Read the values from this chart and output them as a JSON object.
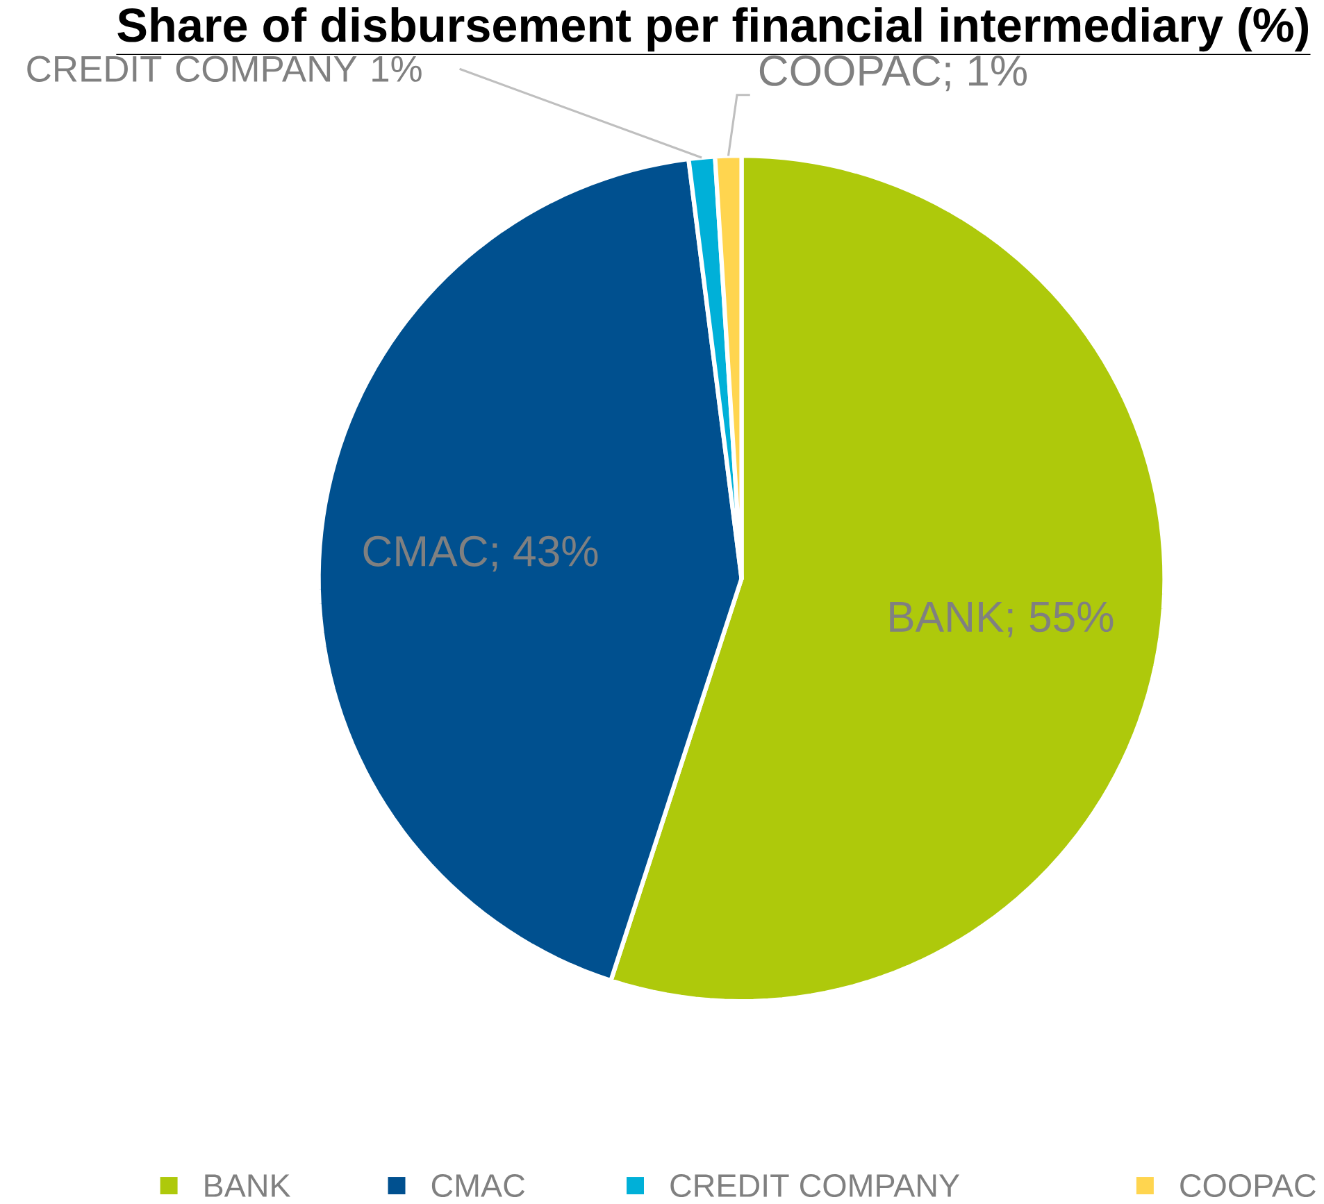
{
  "chart_data": {
    "type": "pie",
    "title": "Share of disbursement per financial intermediary (%)",
    "categories": [
      "BANK",
      "CMAC",
      "CREDIT COMPANY",
      "COOPAC"
    ],
    "values": [
      55,
      43,
      1,
      1
    ],
    "colors": [
      "#aec90b",
      "#00508f",
      "#00b0d8",
      "#ffd54f"
    ],
    "value_labels": [
      "BANK;   55%",
      "CMAC; 43%",
      "CREDIT COMPANY 1%",
      "COOPAC; 1%"
    ],
    "legend": "bottom"
  }
}
